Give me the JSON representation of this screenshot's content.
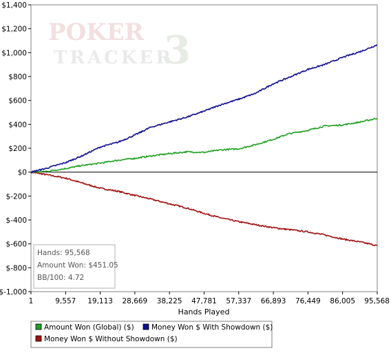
{
  "watermark": {
    "line1": "POKER",
    "line2": "TRACKER",
    "mark": "3"
  },
  "stats": {
    "hands": "Hands: 95,568",
    "amount_won": "Amount Won: $451.05",
    "bb100": "BB/100: 4.72"
  },
  "chart_data": {
    "type": "line",
    "title": "",
    "xlabel": "Hands Played",
    "ylabel": "",
    "x_tick_labels": [
      "1",
      "9,557",
      "19,113",
      "28,669",
      "38,225",
      "47,781",
      "57,337",
      "66,893",
      "76,449",
      "86,005",
      "95,568"
    ],
    "x_ticks": [
      1,
      9557,
      19113,
      28669,
      38225,
      47781,
      57337,
      66893,
      76449,
      86005,
      95568
    ],
    "xlim": [
      1,
      95568
    ],
    "y_tick_labels": [
      "$1,400",
      "$1,200",
      "$1,000",
      "$800",
      "$600",
      "$400",
      "$200",
      "$0",
      "$-200",
      "$-400",
      "$-600",
      "$-800",
      "$-1,000"
    ],
    "y_ticks": [
      1400,
      1200,
      1000,
      800,
      600,
      400,
      200,
      0,
      -200,
      -400,
      -600,
      -800,
      -1000
    ],
    "ylim": [
      -1000,
      1400
    ],
    "grid": false,
    "legend_position": "bottom",
    "series": [
      {
        "name": "Amount Won (Global) ($)",
        "color": "#22a022",
        "x": [
          1,
          4000,
          9557,
          14000,
          19113,
          24000,
          28669,
          33000,
          38225,
          43000,
          47781,
          52000,
          57337,
          62000,
          66893,
          71000,
          76449,
          81000,
          86005,
          91000,
          95568
        ],
        "y": [
          0,
          5,
          30,
          55,
          75,
          100,
          115,
          135,
          155,
          170,
          165,
          185,
          195,
          230,
          275,
          320,
          350,
          385,
          395,
          420,
          451
        ]
      },
      {
        "name": "Money Won $ With Showdown ($)",
        "color": "#10108f",
        "x": [
          1,
          4000,
          9557,
          14000,
          19113,
          24000,
          28669,
          33000,
          38225,
          43000,
          47781,
          52000,
          57337,
          62000,
          66893,
          71000,
          76449,
          81000,
          86005,
          91000,
          95568
        ],
        "y": [
          0,
          30,
          80,
          135,
          210,
          250,
          310,
          375,
          420,
          460,
          510,
          560,
          610,
          660,
          740,
          790,
          860,
          900,
          960,
          1010,
          1065
        ]
      },
      {
        "name": "Money Won $ Without Showdown ($)",
        "color": "#a01010",
        "x": [
          1,
          4000,
          9557,
          14000,
          19113,
          24000,
          28669,
          33000,
          38225,
          43000,
          47781,
          52000,
          57337,
          62000,
          66893,
          71000,
          76449,
          81000,
          86005,
          91000,
          95568
        ],
        "y": [
          0,
          -20,
          -50,
          -90,
          -135,
          -160,
          -195,
          -225,
          -265,
          -300,
          -345,
          -380,
          -415,
          -440,
          -465,
          -480,
          -500,
          -525,
          -560,
          -585,
          -615
        ]
      }
    ]
  }
}
